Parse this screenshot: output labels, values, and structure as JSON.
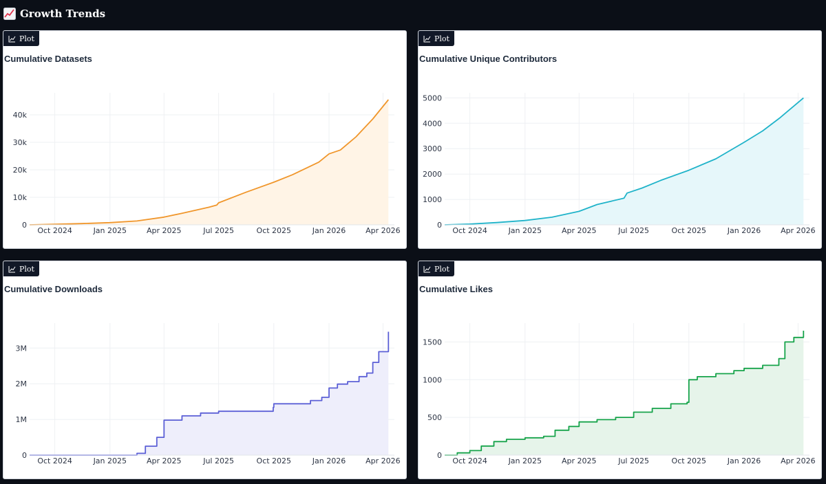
{
  "page": {
    "title": "Growth Trends",
    "icon": "chart-increasing-icon"
  },
  "plot_tab_label": "Plot",
  "chart_data": [
    {
      "type": "area",
      "title": "Cumulative Datasets",
      "color": "#f0962b",
      "fill": "#fff4e6",
      "xlim": [
        "2024-08-20",
        "2026-04-20"
      ],
      "x_ticks": [
        "2024-10-01",
        "2025-01-01",
        "2025-04-01",
        "2025-07-01",
        "2025-10-01",
        "2026-01-01",
        "2026-04-01"
      ],
      "x_tick_labels": [
        "Oct 2024",
        "Jan 2025",
        "Apr 2025",
        "Jul 2025",
        "Oct 2025",
        "Jan 2026",
        "Apr 2026"
      ],
      "ylim": [
        0,
        48000
      ],
      "y_ticks": [
        0,
        10000,
        20000,
        30000,
        40000
      ],
      "y_tick_labels": [
        "0",
        "10k",
        "20k",
        "30k",
        "40k"
      ],
      "grid": true,
      "step": false,
      "x": [
        "2024-08-20",
        "2024-10-01",
        "2024-11-15",
        "2025-01-01",
        "2025-02-15",
        "2025-04-01",
        "2025-05-01",
        "2025-06-15",
        "2025-06-28",
        "2025-07-01",
        "2025-08-15",
        "2025-10-01",
        "2025-11-01",
        "2025-12-15",
        "2026-01-01",
        "2026-01-20",
        "2026-02-15",
        "2026-03-15",
        "2026-04-10"
      ],
      "y": [
        0,
        200,
        450,
        800,
        1400,
        2800,
        4200,
        6400,
        7200,
        8000,
        11800,
        15500,
        18200,
        22800,
        25800,
        27200,
        32000,
        38500,
        45500
      ]
    },
    {
      "type": "area",
      "title": "Cumulative Unique Contributors",
      "color": "#1fb3c9",
      "fill": "#e6f7fa",
      "xlim": [
        "2024-08-20",
        "2026-04-20"
      ],
      "x_ticks": [
        "2024-10-01",
        "2025-01-01",
        "2025-04-01",
        "2025-07-01",
        "2025-10-01",
        "2026-01-01",
        "2026-04-01"
      ],
      "x_tick_labels": [
        "Oct 2024",
        "Jan 2025",
        "Apr 2025",
        "Jul 2025",
        "Oct 2025",
        "Jan 2026",
        "Apr 2026"
      ],
      "ylim": [
        0,
        5200
      ],
      "y_ticks": [
        0,
        1000,
        2000,
        3000,
        4000,
        5000
      ],
      "y_tick_labels": [
        "0",
        "1000",
        "2000",
        "3000",
        "4000",
        "5000"
      ],
      "grid": true,
      "step": false,
      "x": [
        "2024-08-20",
        "2024-10-01",
        "2024-11-15",
        "2025-01-01",
        "2025-02-15",
        "2025-04-01",
        "2025-05-01",
        "2025-06-15",
        "2025-06-20",
        "2025-07-15",
        "2025-08-15",
        "2025-10-01",
        "2025-11-15",
        "2026-01-01",
        "2026-02-01",
        "2026-03-01",
        "2026-04-10"
      ],
      "y": [
        0,
        30,
        90,
        170,
        300,
        530,
        800,
        1050,
        1250,
        1450,
        1750,
        2150,
        2600,
        3250,
        3700,
        4200,
        5000
      ]
    },
    {
      "type": "area",
      "title": "Cumulative Downloads",
      "color": "#5b5fd6",
      "fill": "#eeeefb",
      "xlim": [
        "2024-08-20",
        "2026-04-20"
      ],
      "x_ticks": [
        "2024-10-01",
        "2025-01-01",
        "2025-04-01",
        "2025-07-01",
        "2025-10-01",
        "2026-01-01",
        "2026-04-01"
      ],
      "x_tick_labels": [
        "Oct 2024",
        "Jan 2025",
        "Apr 2025",
        "Jul 2025",
        "Oct 2025",
        "Jan 2026",
        "Apr 2026"
      ],
      "ylim": [
        0,
        3700000
      ],
      "y_ticks": [
        0,
        1000000,
        2000000,
        3000000
      ],
      "y_tick_labels": [
        "0",
        "1M",
        "2M",
        "3M"
      ],
      "grid": true,
      "step": true,
      "x": [
        "2024-08-20",
        "2025-02-01",
        "2025-02-15",
        "2025-03-01",
        "2025-03-20",
        "2025-04-01",
        "2025-05-01",
        "2025-06-01",
        "2025-07-01",
        "2025-09-30",
        "2025-10-01",
        "2025-12-01",
        "2025-12-20",
        "2026-01-01",
        "2026-01-15",
        "2026-02-01",
        "2026-02-20",
        "2026-03-05",
        "2026-03-15",
        "2026-03-25",
        "2026-04-10"
      ],
      "y": [
        0,
        0,
        50000,
        250000,
        500000,
        980000,
        1100000,
        1180000,
        1230000,
        1340000,
        1440000,
        1530000,
        1620000,
        1880000,
        1990000,
        2060000,
        2200000,
        2300000,
        2600000,
        2900000,
        3460000
      ]
    },
    {
      "type": "area",
      "title": "Cumulative Likes",
      "color": "#16a34a",
      "fill": "#e6f4ea",
      "xlim": [
        "2024-08-20",
        "2026-04-20"
      ],
      "x_ticks": [
        "2024-10-01",
        "2025-01-01",
        "2025-04-01",
        "2025-07-01",
        "2025-10-01",
        "2026-01-01",
        "2026-04-01"
      ],
      "x_tick_labels": [
        "Oct 2024",
        "Jan 2025",
        "Apr 2025",
        "Jul 2025",
        "Oct 2025",
        "Jan 2026",
        "Apr 2026"
      ],
      "ylim": [
        0,
        1750
      ],
      "y_ticks": [
        0,
        500,
        1000,
        1500
      ],
      "y_tick_labels": [
        "0",
        "500",
        "1000",
        "1500"
      ],
      "grid": true,
      "step": true,
      "x": [
        "2024-08-20",
        "2024-09-10",
        "2024-10-01",
        "2024-10-20",
        "2024-11-10",
        "2024-12-01",
        "2025-01-01",
        "2025-02-01",
        "2025-02-20",
        "2025-03-15",
        "2025-04-01",
        "2025-05-01",
        "2025-06-01",
        "2025-07-01",
        "2025-08-01",
        "2025-09-01",
        "2025-09-28",
        "2025-10-01",
        "2025-10-15",
        "2025-11-15",
        "2025-12-15",
        "2026-01-01",
        "2026-02-01",
        "2026-02-28",
        "2026-03-10",
        "2026-03-25",
        "2026-04-10"
      ],
      "y": [
        0,
        30,
        60,
        120,
        180,
        210,
        230,
        250,
        330,
        380,
        440,
        470,
        500,
        570,
        620,
        680,
        700,
        1000,
        1040,
        1080,
        1120,
        1150,
        1190,
        1280,
        1500,
        1560,
        1650
      ]
    }
  ]
}
